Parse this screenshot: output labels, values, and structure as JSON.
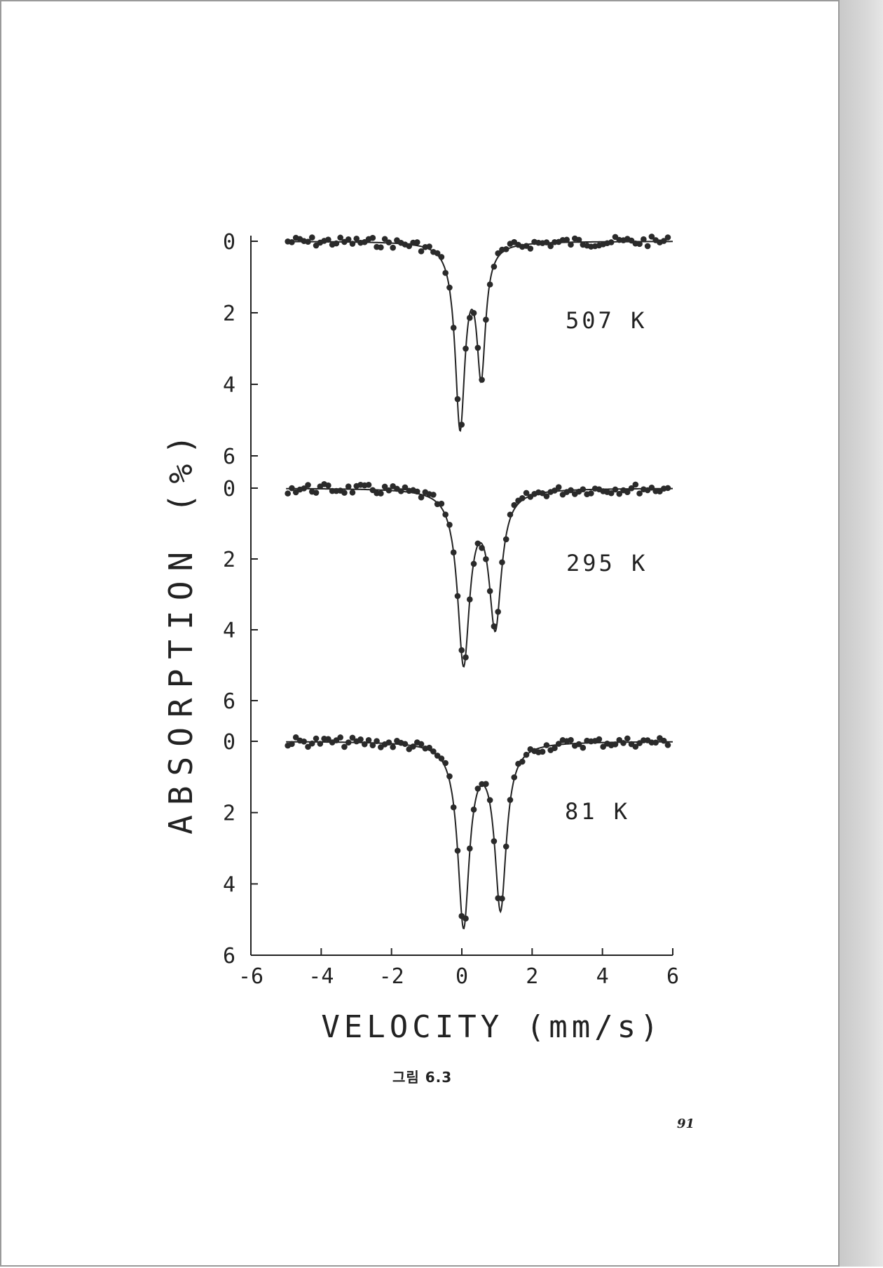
{
  "page": {
    "caption": "그림 6.3",
    "page_number": "91"
  },
  "chart_data": {
    "type": "scatter",
    "xlabel": "VELOCITY (mm/s)",
    "ylabel": "ABSORPTION (%)",
    "xlim": [
      -6,
      6
    ],
    "ylim": [
      0,
      6
    ],
    "y_inverted": true,
    "x_ticks": [
      -6,
      -4,
      -2,
      0,
      2,
      4,
      6
    ],
    "x_tick_labels": [
      "-6",
      "-4",
      "-2",
      "0",
      "2",
      "4",
      "6"
    ],
    "y_ticks": [
      0,
      2,
      4,
      6
    ],
    "y_tick_labels": [
      "0",
      "2",
      "4",
      "6"
    ],
    "grid": false,
    "series": [
      {
        "name": "507 K",
        "peaks": [
          {
            "center": -0.05,
            "depth": 5.1,
            "width": 0.34
          },
          {
            "center": 0.55,
            "depth": 3.55,
            "width": 0.3
          }
        ]
      },
      {
        "name": "295 K",
        "peaks": [
          {
            "center": 0.05,
            "depth": 4.85,
            "width": 0.42
          },
          {
            "center": 0.95,
            "depth": 3.8,
            "width": 0.42
          }
        ]
      },
      {
        "name": "81 K",
        "peaks": [
          {
            "center": 0.05,
            "depth": 5.1,
            "width": 0.4
          },
          {
            "center": 1.1,
            "depth": 4.6,
            "width": 0.4
          }
        ]
      }
    ]
  }
}
